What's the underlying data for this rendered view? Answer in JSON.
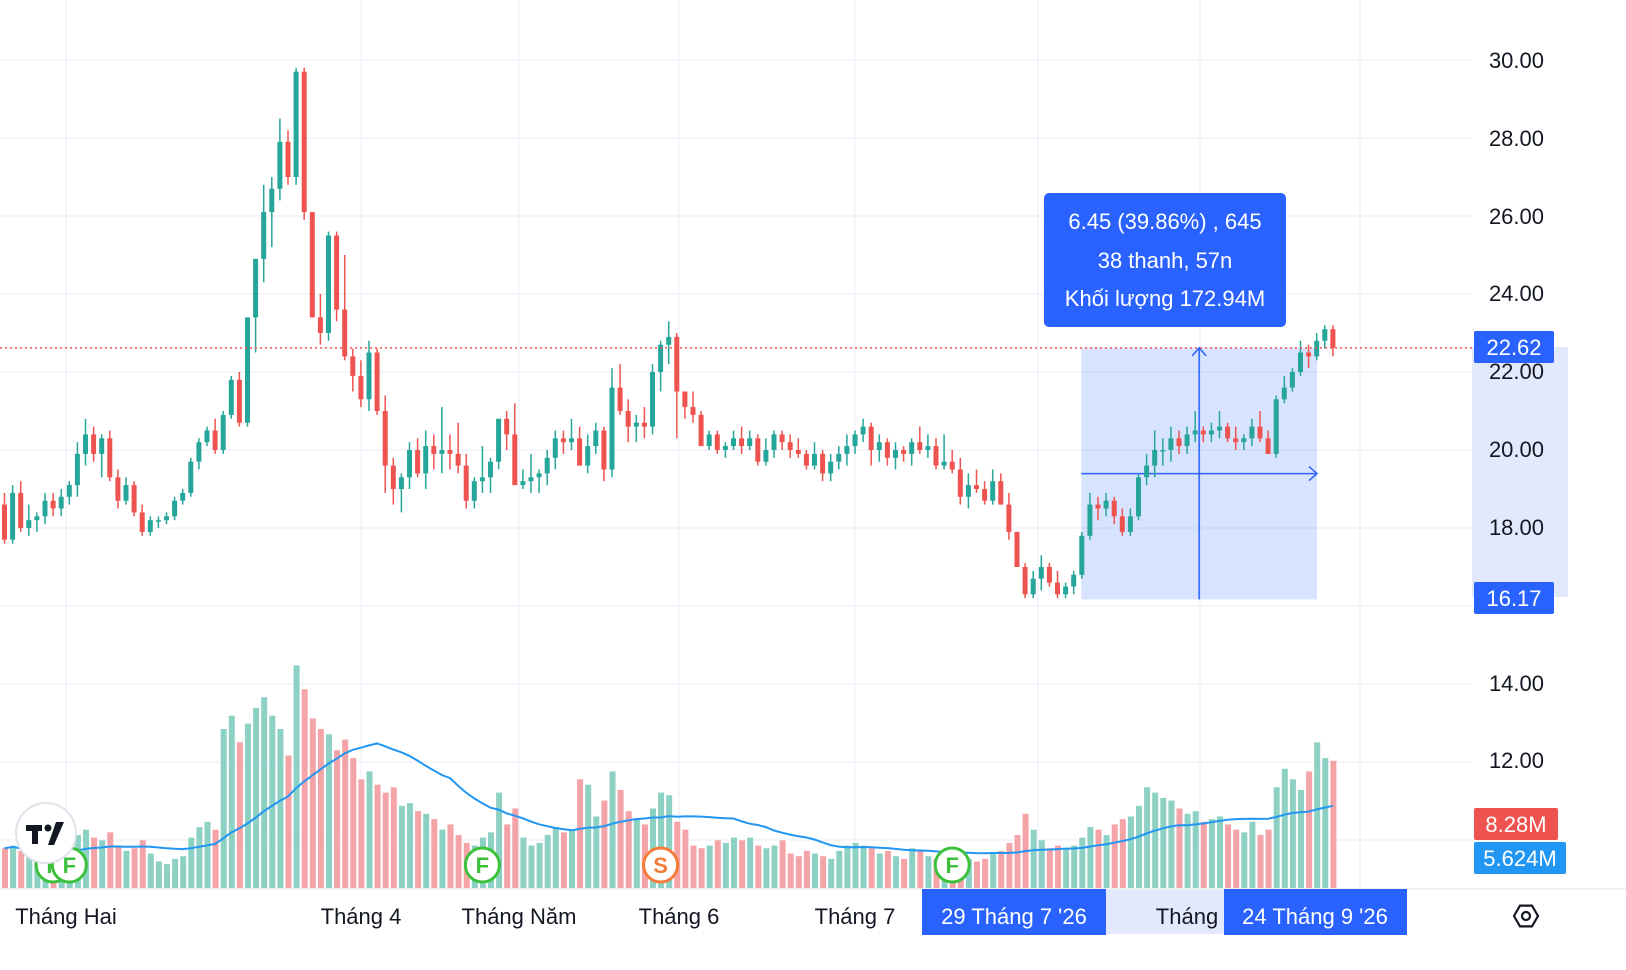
{
  "colors": {
    "up": "#26a69a",
    "down": "#ef5350",
    "volume_up": "#8dd0c4",
    "volume_down": "#f4a3a7",
    "volume_ma": "#2196f3",
    "measure": "#2962ff",
    "grid": "#f0f3fa",
    "last_price": "#ef5350"
  },
  "logo": {
    "icon": "tradingview-logo-icon"
  },
  "settings_icon": "gear-settings-icon",
  "price_axis": {
    "ticks": [
      "30.00",
      "28.00",
      "26.00",
      "24.00",
      "22.00",
      "20.00",
      "18.00",
      "14.00",
      "12.00"
    ],
    "last_price_label": "22.62",
    "range_low_label": "16.17",
    "volume_label": "8.28M",
    "volume_ma_label": "5.624M"
  },
  "time_axis": {
    "labels": [
      "Tháng Hai",
      "Tháng 4",
      "Tháng Năm",
      "Tháng 6",
      "Tháng 7",
      "Tháng"
    ],
    "range_start": "29 Tháng 7 '26",
    "range_end": "24 Tháng 9 '26"
  },
  "measure": {
    "line1": "6.45 (39.86%) , 645",
    "line2": "38 thanh, 57n",
    "line3": "Khối lượng 172.94M",
    "from_price": 16.17,
    "to_price": 22.62
  },
  "events": [
    {
      "letter": "F",
      "index": 6,
      "kind": "financials"
    },
    {
      "letter": "F",
      "index": 8,
      "kind": "financials"
    },
    {
      "letter": "F",
      "index": 59,
      "kind": "financials"
    },
    {
      "letter": "S",
      "index": 81,
      "kind": "split"
    },
    {
      "letter": "F",
      "index": 117,
      "kind": "financials"
    }
  ],
  "chart_data": {
    "type": "candlestick",
    "price_range": [
      14.5,
      30.5
    ],
    "grid": true,
    "last_price": 22.62,
    "candles": [
      [
        18.6,
        18.9,
        17.6,
        17.7,
        1.5
      ],
      [
        17.7,
        19.1,
        17.6,
        18.9,
        1.6
      ],
      [
        18.9,
        19.2,
        17.9,
        18.0,
        1.4
      ],
      [
        18.0,
        18.6,
        17.8,
        18.2,
        1.2
      ],
      [
        18.2,
        18.4,
        17.9,
        18.3,
        1.1
      ],
      [
        18.3,
        18.9,
        18.1,
        18.7,
        1.3
      ],
      [
        18.7,
        18.9,
        18.3,
        18.5,
        1.0
      ],
      [
        18.5,
        19.0,
        18.3,
        18.8,
        1.4
      ],
      [
        18.8,
        19.2,
        18.6,
        19.1,
        1.5
      ],
      [
        19.1,
        20.2,
        18.8,
        19.9,
        2.0
      ],
      [
        19.9,
        20.8,
        19.6,
        20.4,
        2.2
      ],
      [
        20.4,
        20.6,
        19.7,
        19.9,
        1.9
      ],
      [
        19.9,
        20.4,
        19.3,
        20.3,
        1.8
      ],
      [
        20.3,
        20.5,
        19.2,
        19.3,
        2.1
      ],
      [
        19.3,
        19.5,
        18.5,
        18.7,
        1.6
      ],
      [
        18.7,
        19.3,
        18.6,
        19.1,
        1.4
      ],
      [
        19.1,
        19.2,
        18.3,
        18.4,
        1.5
      ],
      [
        18.4,
        18.6,
        17.8,
        17.9,
        1.8
      ],
      [
        17.9,
        18.3,
        17.8,
        18.2,
        1.3
      ],
      [
        18.2,
        18.3,
        18.0,
        18.2,
        1.0
      ],
      [
        18.2,
        18.4,
        18.1,
        18.3,
        0.9
      ],
      [
        18.3,
        18.8,
        18.2,
        18.7,
        1.1
      ],
      [
        18.7,
        19.0,
        18.6,
        18.9,
        1.2
      ],
      [
        18.9,
        19.8,
        18.8,
        19.7,
        1.9
      ],
      [
        19.7,
        20.3,
        19.5,
        20.2,
        2.3
      ],
      [
        20.2,
        20.6,
        20.1,
        20.5,
        2.5
      ],
      [
        20.5,
        20.8,
        19.9,
        20.0,
        2.2
      ],
      [
        20.0,
        21.0,
        19.9,
        20.9,
        6.0
      ],
      [
        20.9,
        21.9,
        20.8,
        21.8,
        6.5
      ],
      [
        21.8,
        22.0,
        20.6,
        20.7,
        5.5
      ],
      [
        20.7,
        23.4,
        20.6,
        23.4,
        6.2
      ],
      [
        23.4,
        24.9,
        22.5,
        24.9,
        6.8
      ],
      [
        24.9,
        26.8,
        24.3,
        26.1,
        7.2
      ],
      [
        26.1,
        27.0,
        25.2,
        26.7,
        6.5
      ],
      [
        26.7,
        28.5,
        26.4,
        27.9,
        6.0
      ],
      [
        27.9,
        28.2,
        26.8,
        27.0,
        5.0
      ],
      [
        27.0,
        29.8,
        26.8,
        29.7,
        8.4
      ],
      [
        29.7,
        29.8,
        25.9,
        26.1,
        7.5
      ],
      [
        26.1,
        26.1,
        23.4,
        23.4,
        6.4
      ],
      [
        23.4,
        24.0,
        22.7,
        23.0,
        6.0
      ],
      [
        23.0,
        25.6,
        22.8,
        25.5,
        5.8
      ],
      [
        25.5,
        25.6,
        23.3,
        23.6,
        5.2
      ],
      [
        23.6,
        25.0,
        22.3,
        22.4,
        5.6
      ],
      [
        22.4,
        22.6,
        21.5,
        21.9,
        4.9
      ],
      [
        21.9,
        22.3,
        21.1,
        21.3,
        4.1
      ],
      [
        21.3,
        22.8,
        21.0,
        22.5,
        4.4
      ],
      [
        22.5,
        22.6,
        20.9,
        21.0,
        3.9
      ],
      [
        21.0,
        21.4,
        18.9,
        19.6,
        3.6
      ],
      [
        19.6,
        19.8,
        18.6,
        19.0,
        3.8
      ],
      [
        19.0,
        19.4,
        18.4,
        19.3,
        3.1
      ],
      [
        19.3,
        20.2,
        19.0,
        20.0,
        3.2
      ],
      [
        20.0,
        20.3,
        19.3,
        19.4,
        2.9
      ],
      [
        19.4,
        20.5,
        19.0,
        20.1,
        2.8
      ],
      [
        20.1,
        20.4,
        19.5,
        19.9,
        2.6
      ],
      [
        19.9,
        21.1,
        19.4,
        20.0,
        2.2
      ],
      [
        20.0,
        20.4,
        19.5,
        19.9,
        2.4
      ],
      [
        19.9,
        20.7,
        19.4,
        19.6,
        2.0
      ],
      [
        19.6,
        19.9,
        18.5,
        18.7,
        1.7
      ],
      [
        18.7,
        19.3,
        18.5,
        19.2,
        1.6
      ],
      [
        19.2,
        20.1,
        18.9,
        19.3,
        1.9
      ],
      [
        19.3,
        19.8,
        18.9,
        19.7,
        2.1
      ],
      [
        19.7,
        20.8,
        19.5,
        20.8,
        3.6
      ],
      [
        20.8,
        21.0,
        20.0,
        20.4,
        2.4
      ],
      [
        20.4,
        21.2,
        19.1,
        19.1,
        3.0
      ],
      [
        19.1,
        19.5,
        19.0,
        19.2,
        1.9
      ],
      [
        19.2,
        19.9,
        18.9,
        19.3,
        1.6
      ],
      [
        19.3,
        19.5,
        18.9,
        19.4,
        1.7
      ],
      [
        19.4,
        20.0,
        19.1,
        19.8,
        2.0
      ],
      [
        19.8,
        20.5,
        19.5,
        20.3,
        2.3
      ],
      [
        20.3,
        20.5,
        19.9,
        20.2,
        2.1
      ],
      [
        20.2,
        20.8,
        20.0,
        20.3,
        2.2
      ],
      [
        20.3,
        20.6,
        19.6,
        19.6,
        4.1
      ],
      [
        19.6,
        20.4,
        19.4,
        20.1,
        3.9
      ],
      [
        20.1,
        20.7,
        19.9,
        20.5,
        2.7
      ],
      [
        20.5,
        20.6,
        19.2,
        19.5,
        3.3
      ],
      [
        19.5,
        22.1,
        19.3,
        21.6,
        4.4
      ],
      [
        21.6,
        22.2,
        20.9,
        21.0,
        3.7
      ],
      [
        21.0,
        21.3,
        20.2,
        20.6,
        2.9
      ],
      [
        20.6,
        20.9,
        20.2,
        20.7,
        2.6
      ],
      [
        20.7,
        21.1,
        20.3,
        20.6,
        2.4
      ],
      [
        20.6,
        22.2,
        20.4,
        22.0,
        3.0
      ],
      [
        22.0,
        22.8,
        21.5,
        22.7,
        3.6
      ],
      [
        22.7,
        23.3,
        22.2,
        22.9,
        3.5
      ],
      [
        22.9,
        23.0,
        20.3,
        21.5,
        2.5
      ],
      [
        21.5,
        21.5,
        20.8,
        21.1,
        2.2
      ],
      [
        21.1,
        21.5,
        20.7,
        20.9,
        1.6
      ],
      [
        20.9,
        21.0,
        20.1,
        20.1,
        1.5
      ],
      [
        20.1,
        20.5,
        20.0,
        20.4,
        1.6
      ],
      [
        20.4,
        20.5,
        19.9,
        20.0,
        1.8
      ],
      [
        20.0,
        20.2,
        19.8,
        20.1,
        1.7
      ],
      [
        20.1,
        20.5,
        20.0,
        20.3,
        1.9
      ],
      [
        20.3,
        20.6,
        19.9,
        20.1,
        1.8
      ],
      [
        20.1,
        20.5,
        20.0,
        20.3,
        1.9
      ],
      [
        20.3,
        20.4,
        19.6,
        19.7,
        1.6
      ],
      [
        19.7,
        20.3,
        19.6,
        20.0,
        1.5
      ],
      [
        20.0,
        20.5,
        19.8,
        20.4,
        1.6
      ],
      [
        20.4,
        20.5,
        20.0,
        20.2,
        1.8
      ],
      [
        20.2,
        20.4,
        19.8,
        20.0,
        1.3
      ],
      [
        20.0,
        20.3,
        19.8,
        19.9,
        1.2
      ],
      [
        19.9,
        20.0,
        19.5,
        19.6,
        1.4
      ],
      [
        19.6,
        20.2,
        19.5,
        19.9,
        1.3
      ],
      [
        19.9,
        20.0,
        19.2,
        19.4,
        1.2
      ],
      [
        19.4,
        19.9,
        19.2,
        19.7,
        1.1
      ],
      [
        19.7,
        20.1,
        19.5,
        19.9,
        1.4
      ],
      [
        19.9,
        20.4,
        19.6,
        20.1,
        1.6
      ],
      [
        20.1,
        20.5,
        19.9,
        20.4,
        1.7
      ],
      [
        20.4,
        20.8,
        20.2,
        20.6,
        1.6
      ],
      [
        20.6,
        20.7,
        19.6,
        20.0,
        1.5
      ],
      [
        20.0,
        20.4,
        19.7,
        20.2,
        1.3
      ],
      [
        20.2,
        20.3,
        19.6,
        19.8,
        1.4
      ],
      [
        19.8,
        20.2,
        19.5,
        20.0,
        1.2
      ],
      [
        20.0,
        20.1,
        19.7,
        19.9,
        1.1
      ],
      [
        19.9,
        20.3,
        19.6,
        20.2,
        1.5
      ],
      [
        20.2,
        20.6,
        19.9,
        20.0,
        1.4
      ],
      [
        20.0,
        20.4,
        19.8,
        20.1,
        1.2
      ],
      [
        20.1,
        20.3,
        19.5,
        19.6,
        1.1
      ],
      [
        19.6,
        20.4,
        19.5,
        19.7,
        1.3
      ],
      [
        19.7,
        20.0,
        19.4,
        19.5,
        1.0
      ],
      [
        19.5,
        19.8,
        18.6,
        18.8,
        1.2
      ],
      [
        18.8,
        19.4,
        18.5,
        19.1,
        1.1
      ],
      [
        19.1,
        19.5,
        18.9,
        19.0,
        1.0
      ],
      [
        19.0,
        19.2,
        18.6,
        18.7,
        1.1
      ],
      [
        18.7,
        19.5,
        18.6,
        19.2,
        1.3
      ],
      [
        19.2,
        19.4,
        18.6,
        18.6,
        1.4
      ],
      [
        18.6,
        18.9,
        17.7,
        17.9,
        1.7
      ],
      [
        17.9,
        17.9,
        17.0,
        17.0,
        2.0
      ],
      [
        17.0,
        17.1,
        16.2,
        16.3,
        2.8
      ],
      [
        16.3,
        16.9,
        16.2,
        16.7,
        2.2
      ],
      [
        16.7,
        17.3,
        16.4,
        17.0,
        1.8
      ],
      [
        17.0,
        17.1,
        16.5,
        16.6,
        1.5
      ],
      [
        16.6,
        16.9,
        16.2,
        16.3,
        1.6
      ],
      [
        16.3,
        16.6,
        16.2,
        16.5,
        1.5
      ],
      [
        16.5,
        16.9,
        16.3,
        16.8,
        1.6
      ]
    ],
    "candles_range": [
      [
        16.8,
        17.9,
        16.7,
        17.8,
        1.9
      ],
      [
        17.8,
        18.9,
        17.7,
        18.6,
        2.3
      ],
      [
        18.6,
        18.8,
        18.2,
        18.5,
        2.2
      ],
      [
        18.5,
        18.9,
        18.3,
        18.7,
        2.0
      ],
      [
        18.7,
        18.8,
        18.1,
        18.3,
        2.4
      ],
      [
        18.3,
        18.5,
        17.8,
        17.9,
        2.6
      ],
      [
        17.9,
        18.5,
        17.8,
        18.3,
        2.7
      ],
      [
        18.3,
        19.4,
        18.2,
        19.3,
        3.1
      ],
      [
        19.3,
        19.9,
        19.1,
        19.6,
        3.8
      ],
      [
        19.6,
        20.5,
        19.3,
        20.0,
        3.6
      ],
      [
        20.0,
        20.3,
        19.6,
        20.0,
        3.4
      ],
      [
        20.0,
        20.6,
        19.7,
        20.3,
        3.3
      ],
      [
        20.3,
        20.5,
        19.9,
        20.1,
        3.0
      ],
      [
        20.1,
        20.6,
        19.9,
        20.4,
        2.8
      ],
      [
        20.4,
        21.0,
        20.2,
        20.5,
        2.9
      ],
      [
        20.5,
        20.6,
        20.2,
        20.4,
        2.5
      ],
      [
        20.4,
        20.7,
        20.2,
        20.5,
        2.6
      ],
      [
        20.5,
        21.0,
        20.3,
        20.6,
        2.7
      ],
      [
        20.6,
        20.7,
        20.2,
        20.3,
        2.4
      ],
      [
        20.3,
        20.6,
        20.0,
        20.2,
        2.2
      ],
      [
        20.2,
        20.4,
        20.0,
        20.3,
        2.1
      ],
      [
        20.3,
        20.8,
        20.1,
        20.6,
        2.5
      ],
      [
        20.6,
        21.0,
        20.2,
        20.3,
        2.0
      ],
      [
        20.3,
        20.5,
        19.9,
        19.9,
        2.2
      ],
      [
        19.9,
        21.4,
        19.8,
        21.3,
        3.8
      ],
      [
        21.3,
        21.9,
        21.2,
        21.6,
        4.5
      ],
      [
        21.6,
        22.1,
        21.5,
        22.0,
        4.1
      ],
      [
        22.0,
        22.8,
        21.9,
        22.5,
        3.7
      ],
      [
        22.5,
        22.7,
        22.1,
        22.4,
        4.4
      ],
      [
        22.4,
        23.0,
        22.3,
        22.8,
        5.5
      ],
      [
        22.8,
        23.2,
        22.6,
        23.1,
        4.9
      ],
      [
        23.1,
        23.2,
        22.4,
        22.62,
        4.8
      ]
    ]
  }
}
